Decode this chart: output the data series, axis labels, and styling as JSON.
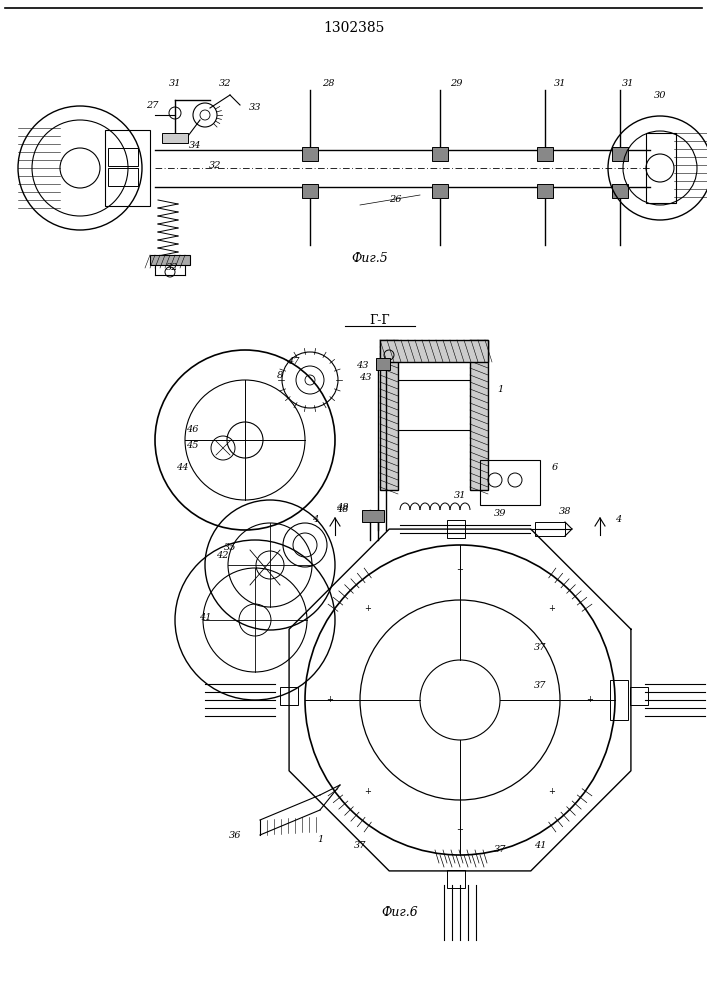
{
  "title": "1302385",
  "fig5_label": "Фиг.5",
  "fig6_label": "Фиг.6",
  "section_label": "Г-Г",
  "bg_color": "#ffffff"
}
